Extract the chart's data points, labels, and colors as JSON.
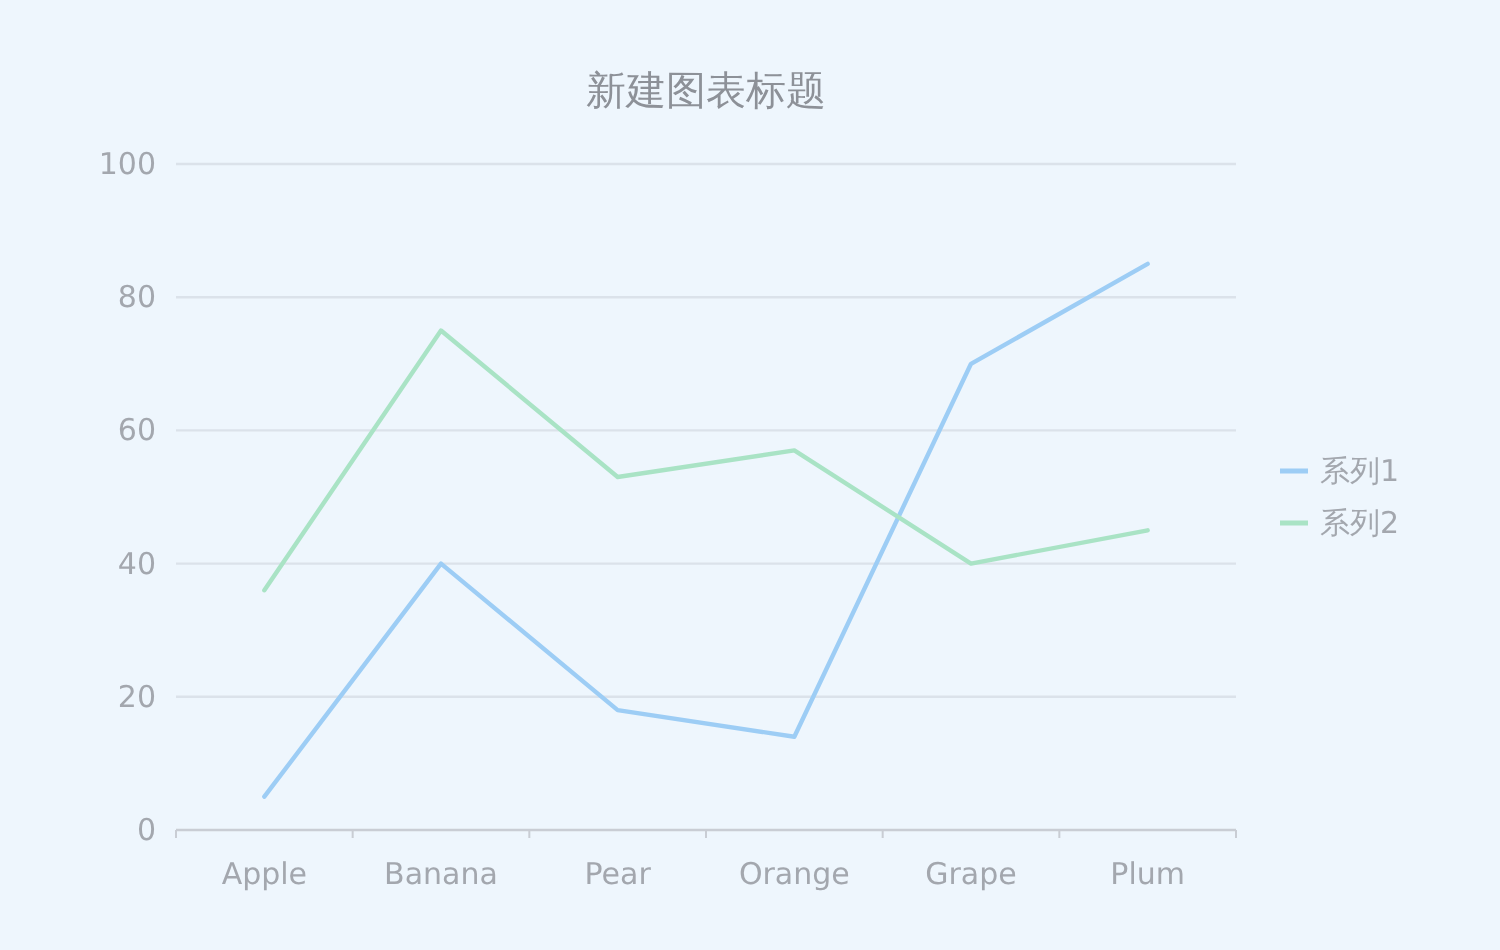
{
  "chart_data": {
    "type": "line",
    "title": "新建图表标题",
    "categories": [
      "Apple",
      "Banana",
      "Pear",
      "Orange",
      "Grape",
      "Plum"
    ],
    "series": [
      {
        "name": "系列1",
        "color": "#9dcdf5",
        "values": [
          5,
          40,
          18,
          14,
          70,
          85
        ]
      },
      {
        "name": "系列2",
        "color": "#a9e3c5",
        "values": [
          36,
          75,
          53,
          57,
          40,
          45
        ]
      }
    ],
    "ylim": [
      0,
      100
    ],
    "yticks": [
      0,
      20,
      40,
      60,
      80,
      100
    ],
    "grid": "y",
    "legend": "right",
    "marker": "none",
    "line_style": "solid"
  }
}
